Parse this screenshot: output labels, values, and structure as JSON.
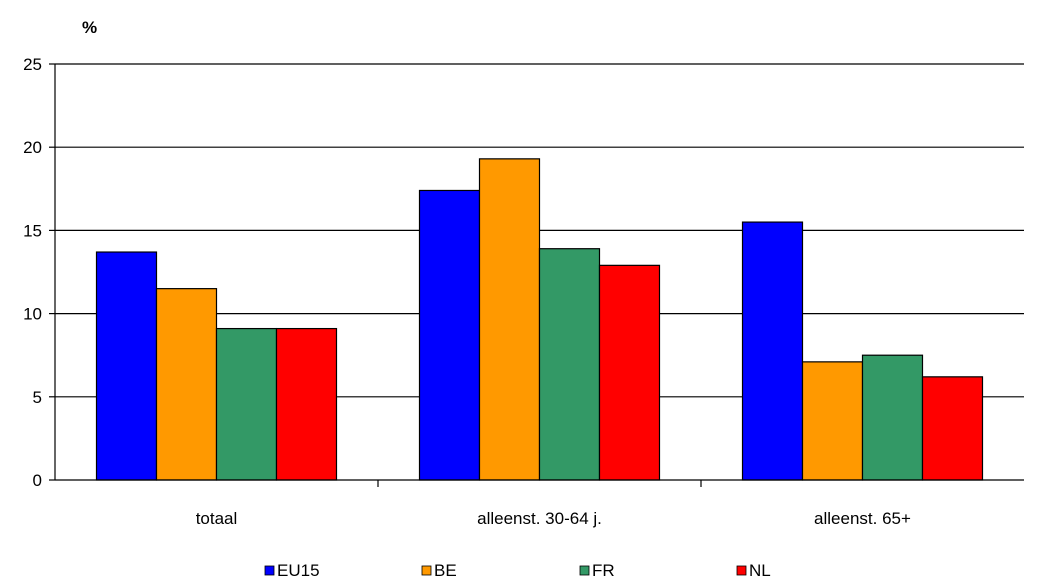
{
  "chart_data": {
    "type": "bar",
    "unit_label": "%",
    "categories": [
      "totaal",
      "alleenst. 30-64 j.",
      "alleenst. 65+"
    ],
    "series": [
      {
        "name": "EU15",
        "color": "#0000ff",
        "values": [
          13.7,
          17.4,
          15.5
        ]
      },
      {
        "name": "BE",
        "color": "#ff9900",
        "values": [
          11.5,
          19.3,
          7.1
        ]
      },
      {
        "name": "FR",
        "color": "#339966",
        "values": [
          9.1,
          13.9,
          7.5
        ]
      },
      {
        "name": "NL",
        "color": "#ff0000",
        "values": [
          9.1,
          12.9,
          6.2
        ]
      }
    ],
    "ylim": [
      0,
      25
    ],
    "yticks": [
      0,
      5,
      10,
      15,
      20,
      25
    ],
    "grid": true,
    "legend_position": "bottom"
  }
}
